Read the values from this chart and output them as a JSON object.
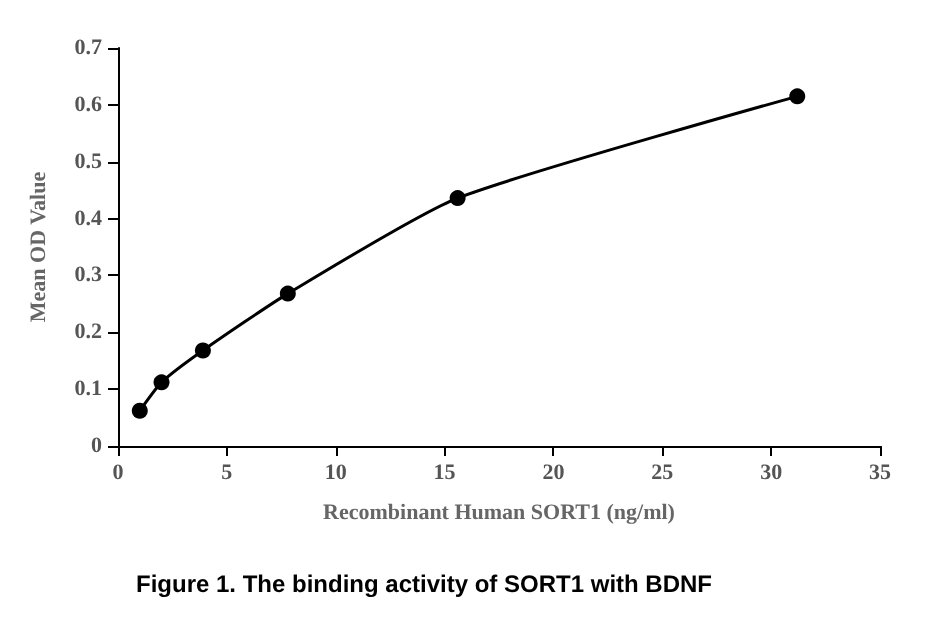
{
  "chart_data": {
    "type": "line",
    "xlabel": "Recombinant Human SORT1 (ng/ml)",
    "ylabel": "Mean OD Value",
    "annotations": [
      "Figure 1. The binding activity of SORT1 with BDNF"
    ],
    "x": [
      1,
      2,
      3.9,
      7.8,
      15.6,
      31.2
    ],
    "series": [
      {
        "color": "#000000",
        "values": [
          0.062,
          0.112,
          0.168,
          0.268,
          0.436,
          0.615
        ]
      }
    ],
    "xlim": [
      0,
      35
    ],
    "xticks": [
      0,
      5,
      10,
      15,
      20,
      25,
      30,
      35
    ],
    "ylim": [
      0,
      0.7
    ],
    "yticks": [
      0,
      0.1,
      0.2,
      0.3,
      0.4,
      0.5,
      0.6,
      0.7
    ],
    "grid": false,
    "marker": "circle",
    "line_style": "solid"
  }
}
